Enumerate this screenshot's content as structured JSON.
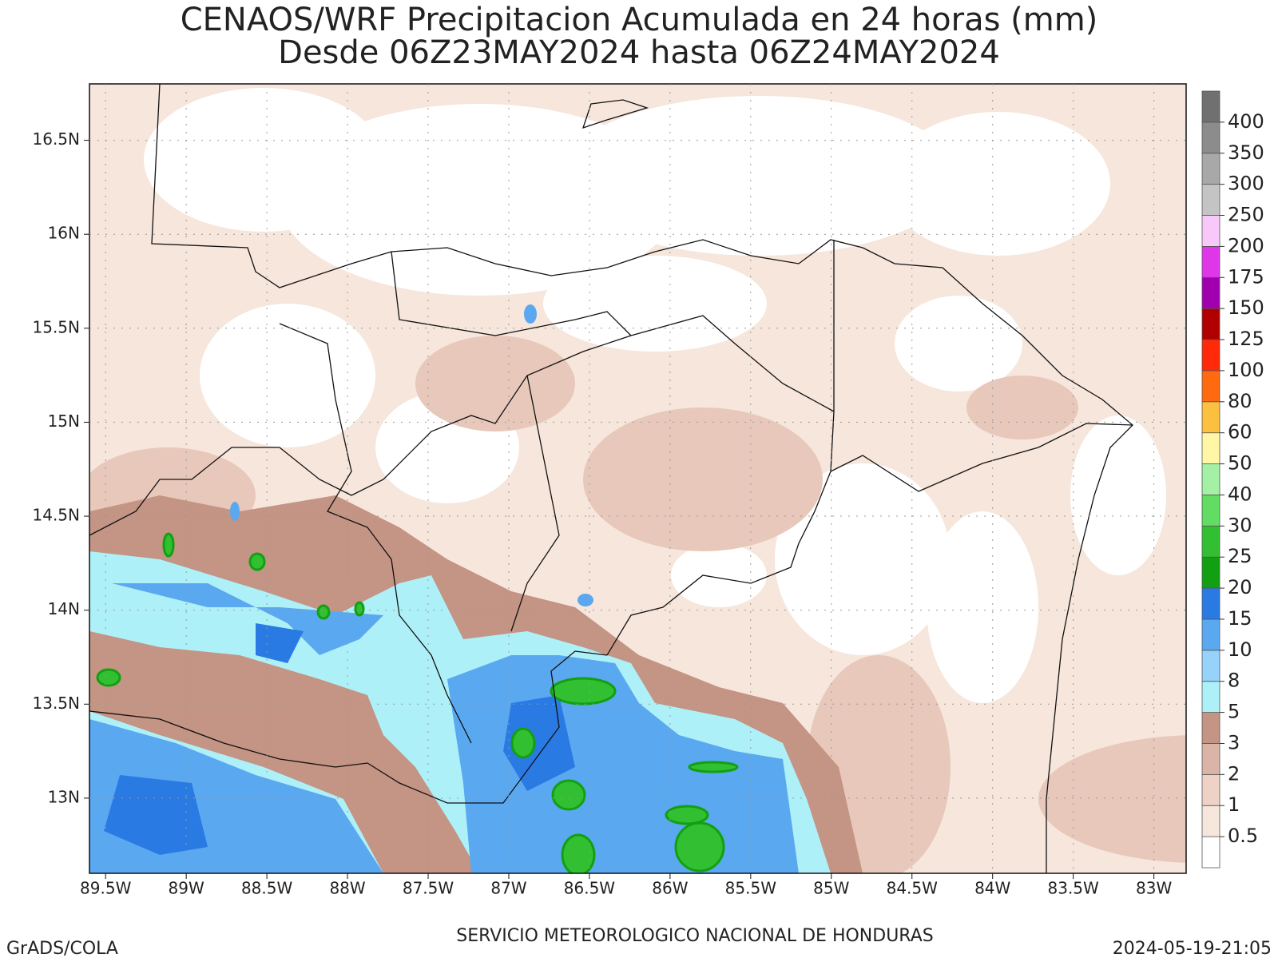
{
  "title": [
    "CENAOS/WRF Precipitacion Acumulada en 24 horas (mm)",
    "Desde 06Z23MAY2024 hasta 06Z24MAY2024"
  ],
  "map": {
    "xlim": [
      -89.6,
      -82.8
    ],
    "ylim": [
      12.6,
      16.8
    ],
    "lon_ticks": [
      {
        "value": -89.5,
        "label": "89.5W"
      },
      {
        "value": -89,
        "label": "89W"
      },
      {
        "value": -88.5,
        "label": "88.5W"
      },
      {
        "value": -88,
        "label": "88W"
      },
      {
        "value": -87.5,
        "label": "87.5W"
      },
      {
        "value": -87,
        "label": "87W"
      },
      {
        "value": -86.5,
        "label": "86.5W"
      },
      {
        "value": -86,
        "label": "86W"
      },
      {
        "value": -85.5,
        "label": "85.5W"
      },
      {
        "value": -85,
        "label": "85W"
      },
      {
        "value": -84.5,
        "label": "84.5W"
      },
      {
        "value": -84,
        "label": "84W"
      },
      {
        "value": -83.5,
        "label": "83.5W"
      },
      {
        "value": -83,
        "label": "83W"
      }
    ],
    "lat_ticks": [
      {
        "value": 13,
        "label": "13N"
      },
      {
        "value": 13.5,
        "label": "13.5N"
      },
      {
        "value": 14,
        "label": "14N"
      },
      {
        "value": 14.5,
        "label": "14.5N"
      },
      {
        "value": 15,
        "label": "15N"
      },
      {
        "value": 15.5,
        "label": "15.5N"
      },
      {
        "value": 16,
        "label": "16N"
      },
      {
        "value": 16.5,
        "label": "16.5N"
      }
    ],
    "grid": true
  },
  "colorbar": {
    "levels": [
      0.5,
      1,
      2,
      3,
      5,
      8,
      10,
      15,
      20,
      25,
      30,
      40,
      50,
      60,
      80,
      100,
      125,
      150,
      175,
      200,
      250,
      300,
      350,
      400
    ],
    "colors": [
      "#ffffff",
      "#f6e6dc",
      "#eed2c6",
      "#dab4a6",
      "#c49484",
      "#aef0f8",
      "#96d2fa",
      "#5aa8f0",
      "#2a7ae4",
      "#12a012",
      "#32c032",
      "#62dc62",
      "#a4f0a4",
      "#fff6a6",
      "#fcc040",
      "#ff6a10",
      "#ff2a0a",
      "#b00000",
      "#a000b0",
      "#e036ea",
      "#f8c8f8",
      "#c4c4c4",
      "#a8a8a8",
      "#8c8c8c",
      "#707070"
    ]
  },
  "footer": {
    "left": "GrADS/COLA",
    "center": "SERVICIO METEOROLOGICO NACIONAL DE HONDURAS",
    "right": "2024-05-19-21:05"
  }
}
